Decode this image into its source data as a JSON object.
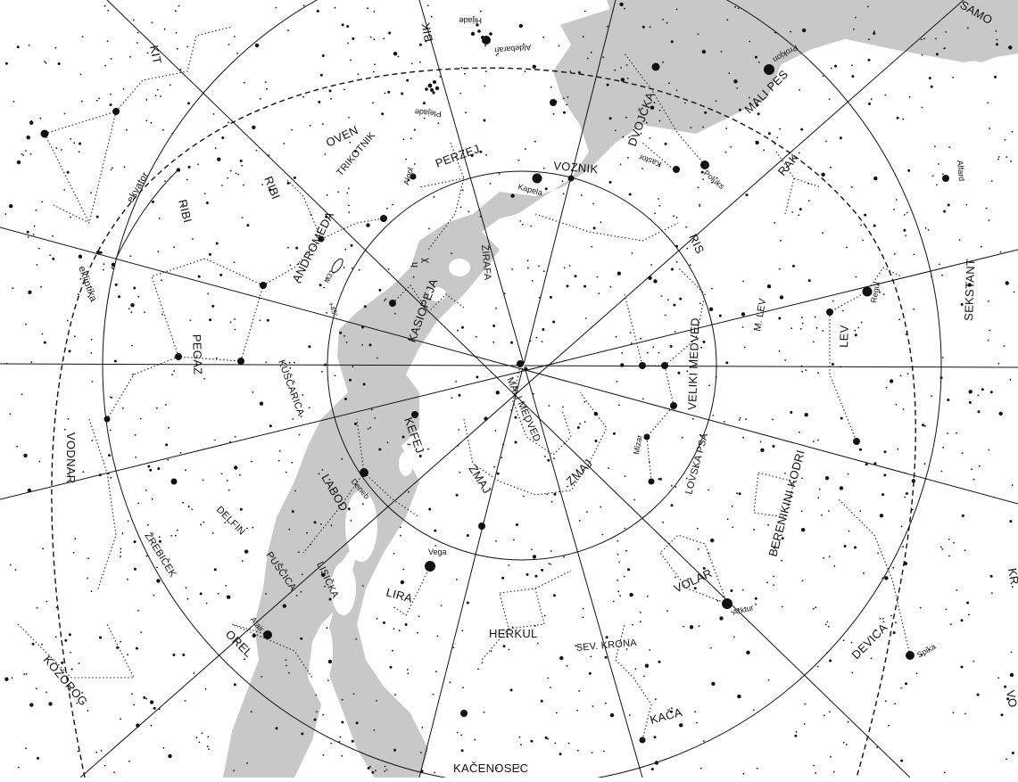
{
  "colors": {
    "background": "#ffffff",
    "milky_way": "#c8c8c8",
    "ink": "#111111"
  },
  "lines": {
    "equator": "ekvator",
    "ecliptic": "ekliptika"
  },
  "constellations": [
    "KIT",
    "OVEN",
    "BIK",
    "PERZEJ",
    "TRIKOTNIK",
    "RIBI",
    "ANDROMEDA",
    "KASIOPEJA",
    "ŽIRAFA",
    "VOZNIK",
    "DVOJČKA",
    "MALI PES",
    "RAK",
    "RIS",
    "LEV",
    "M. LEV",
    "SEKSTANT",
    "VELIKI MEDVED",
    "MALI MEDVED",
    "ZMAJ",
    "KEFEJ",
    "LABOD",
    "KUŠČARICA",
    "PEGAZ",
    "VODNAR",
    "DELFIN",
    "PUŠČICA",
    "LISIČKA",
    "LIRA",
    "HERKUL",
    "SEV. KRONA",
    "VOLAR",
    "LOVSKA PSA",
    "BERENIKINI KODRI",
    "DEVICA",
    "KAČA",
    "KAČENOSEC",
    "OREL",
    "ŽREBIČEK",
    "KOZOROG",
    "SAMO",
    "KR",
    "VO"
  ],
  "stars": [
    "Hijade",
    "Aldebaran",
    "Plejade",
    "Algol",
    "Kapela",
    "Kastor",
    "Poluks",
    "Prokjon",
    "Alfard",
    "Regul",
    "Mizar",
    "Deneb",
    "Vega",
    "Arktur",
    "Spika",
    "Atair"
  ],
  "objects": {
    "double_cluster": "h",
    "m31": "M31",
    "ra_mark": "+45°",
    "chi": "χ"
  }
}
